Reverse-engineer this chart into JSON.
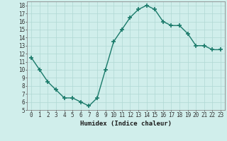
{
  "x": [
    0,
    1,
    2,
    3,
    4,
    5,
    6,
    7,
    8,
    9,
    10,
    11,
    12,
    13,
    14,
    15,
    16,
    17,
    18,
    19,
    20,
    21,
    22,
    23
  ],
  "y": [
    11.5,
    10.0,
    8.5,
    7.5,
    6.5,
    6.5,
    6.0,
    5.5,
    6.5,
    10.0,
    13.5,
    15.0,
    16.5,
    17.5,
    18.0,
    17.5,
    16.0,
    15.5,
    15.5,
    14.5,
    13.0,
    13.0,
    12.5,
    12.5
  ],
  "line_color": "#1a7a6a",
  "marker": "+",
  "marker_size": 4,
  "marker_lw": 1.2,
  "bg_color": "#d0eeeb",
  "grid_color": "#b0d8d4",
  "xlabel": "Humidex (Indice chaleur)",
  "xlim": [
    -0.5,
    23.5
  ],
  "ylim": [
    5,
    18.5
  ],
  "yticks": [
    5,
    6,
    7,
    8,
    9,
    10,
    11,
    12,
    13,
    14,
    15,
    16,
    17,
    18
  ],
  "xticks": [
    0,
    1,
    2,
    3,
    4,
    5,
    6,
    7,
    8,
    9,
    10,
    11,
    12,
    13,
    14,
    15,
    16,
    17,
    18,
    19,
    20,
    21,
    22,
    23
  ],
  "xtick_labels": [
    "0",
    "1",
    "2",
    "3",
    "4",
    "5",
    "6",
    "7",
    "8",
    "9",
    "10",
    "11",
    "12",
    "13",
    "14",
    "15",
    "16",
    "17",
    "18",
    "19",
    "20",
    "21",
    "22",
    "23"
  ],
  "xlabel_fontsize": 6.5,
  "tick_fontsize": 5.5,
  "line_width": 1.0
}
